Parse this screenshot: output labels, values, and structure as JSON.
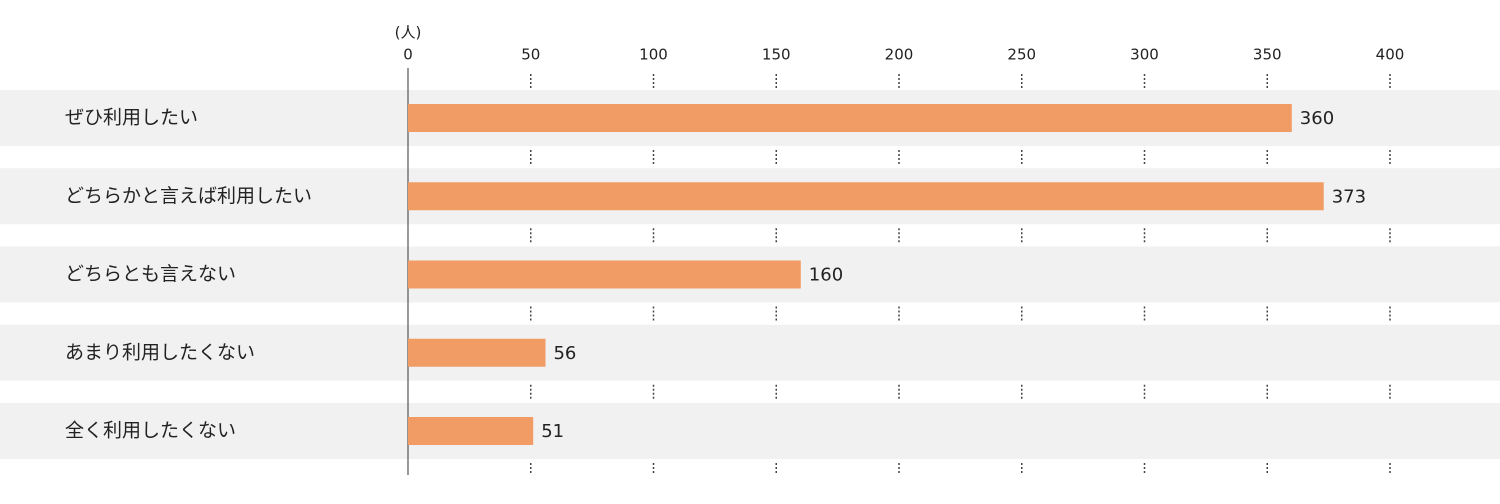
{
  "chart_data": {
    "type": "hbar",
    "unit_label": "(人)",
    "categories": [
      "ぜひ利用したい",
      "どちらかと言えば利用したい",
      "どちらとも言えない",
      "あまり利用したくない",
      "全く利用したくない"
    ],
    "values": [
      360,
      373,
      160,
      56,
      51
    ],
    "color": "#f29c65",
    "xlim": [
      0,
      400
    ],
    "xticks": [
      0,
      50,
      100,
      150,
      200,
      250,
      300,
      350,
      400
    ]
  }
}
